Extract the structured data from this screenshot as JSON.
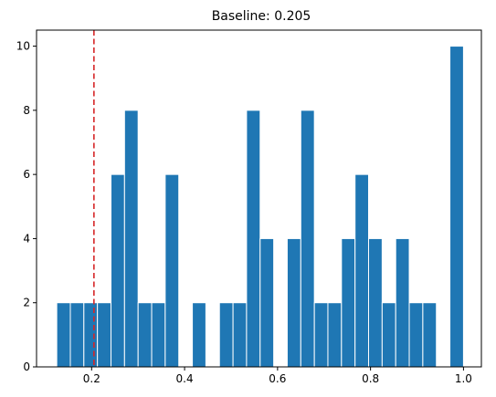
{
  "chart_data": {
    "type": "bar",
    "title": "Baseline: 0.205",
    "xlabel": "",
    "ylabel": "",
    "xlim": [
      0.0815,
      1.0385
    ],
    "ylim": [
      0,
      10.5
    ],
    "xticks": [
      0.2,
      0.4,
      0.6,
      0.8,
      1.0
    ],
    "xtick_labels": [
      "0.2",
      "0.4",
      "0.6",
      "0.8",
      "1.0"
    ],
    "yticks": [
      0,
      2,
      4,
      6,
      8,
      10
    ],
    "ytick_labels": [
      "0",
      "2",
      "4",
      "6",
      "8",
      "10"
    ],
    "bin_edges": [
      0.125,
      0.1542,
      0.1833,
      0.2125,
      0.2417,
      0.2708,
      0.3,
      0.3292,
      0.3583,
      0.3875,
      0.4167,
      0.4458,
      0.475,
      0.5042,
      0.5333,
      0.5625,
      0.5917,
      0.6208,
      0.65,
      0.6792,
      0.7083,
      0.7375,
      0.7667,
      0.7958,
      0.825,
      0.8542,
      0.8833,
      0.9125,
      0.9417,
      0.9708,
      1.0
    ],
    "counts": [
      2,
      2,
      2,
      2,
      6,
      8,
      2,
      2,
      6,
      0,
      2,
      0,
      2,
      2,
      8,
      4,
      0,
      4,
      8,
      2,
      2,
      4,
      6,
      4,
      2,
      4,
      2,
      2,
      0,
      10
    ],
    "bar_color": "#1f77b4",
    "bar_edge_color": "#ffffff",
    "reference_line": {
      "x": 0.205,
      "color": "#d62728",
      "style": "dashed"
    },
    "grid": false,
    "legend": "none"
  }
}
